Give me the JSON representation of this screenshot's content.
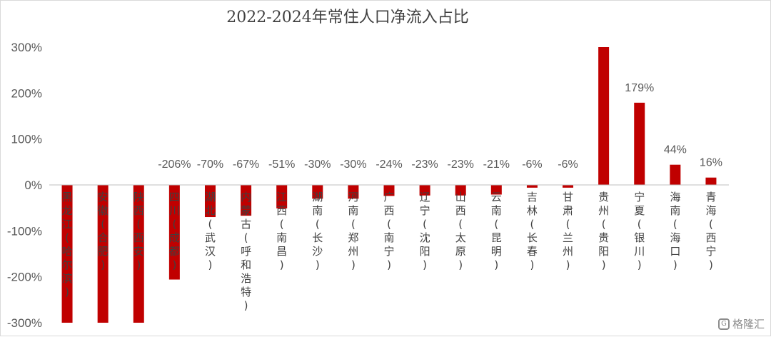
{
  "chart_data": {
    "type": "bar",
    "title": "2022-2024年常住人口净流入占比",
    "ylim": [
      -300,
      300
    ],
    "yticks": [
      300,
      200,
      100,
      0,
      -100,
      -200,
      -300
    ],
    "ytick_labels": [
      "300%",
      "200%",
      "100%",
      "0%",
      "-100%",
      "-200%",
      "-300%"
    ],
    "categories": [
      "黑龙江(哈尔滨)",
      "安徽(合肥)",
      "陕西(西安)",
      "四川(成都)",
      "湖北(武汉)",
      "内蒙古(呼和浩特)",
      "江西(南昌)",
      "湖南(长沙)",
      "河南(郑州)",
      "广西(南宁)",
      "辽宁(沈阳)",
      "山西(太原)",
      "云南(昆明)",
      "吉林(长春)",
      "甘肃(兰州)",
      "贵州(贵阳)",
      "宁夏(银川)",
      "海南(海口)",
      "青海(西宁)"
    ],
    "values": [
      -300,
      -300,
      -300,
      -206,
      -70,
      -67,
      -51,
      -30,
      -30,
      -24,
      -23,
      -23,
      -21,
      -6,
      -6,
      300,
      179,
      44,
      16
    ],
    "data_labels": [
      "",
      "",
      "",
      "-206%",
      "-70%",
      "-67%",
      "-51%",
      "-30%",
      "-30%",
      "-24%",
      "-23%",
      "-23%",
      "-21%",
      "-6%",
      "-6%",
      "",
      "179%",
      "44%",
      "16%"
    ],
    "bar_color": "#c00000",
    "grid": false,
    "legend": "none"
  },
  "watermark": {
    "icon": "gelonghui-logo-icon",
    "text": "格隆汇"
  }
}
